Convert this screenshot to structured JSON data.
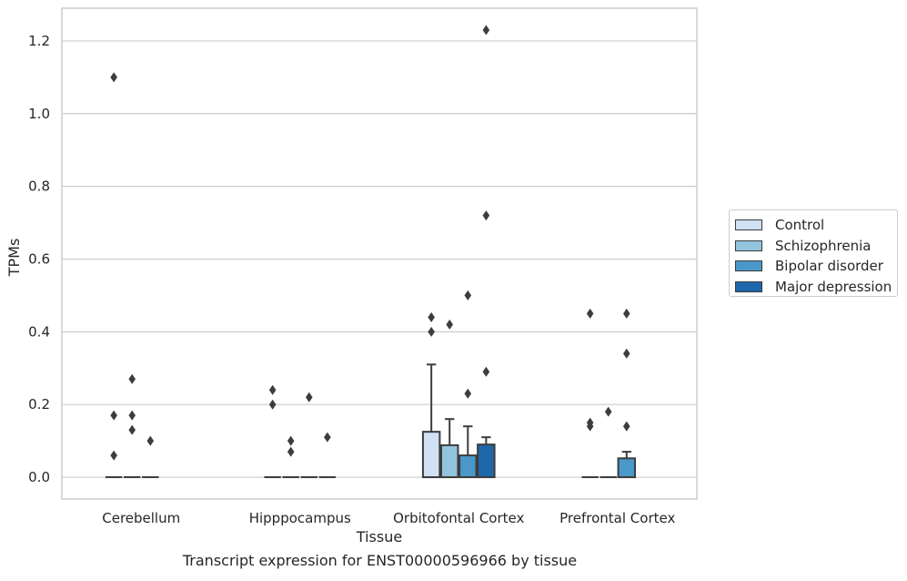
{
  "chart_data": {
    "type": "box",
    "xlabel": "Tissue",
    "ylabel": "TPMs",
    "ylim": [
      -0.06,
      1.29
    ],
    "yticks": [
      "0.0",
      "0.2",
      "0.4",
      "0.6",
      "0.8",
      "1.0",
      "1.2"
    ],
    "grid": "horizontal",
    "legend_position": "right",
    "categories": [
      "Cerebellum",
      "Hipppocampus",
      "Orbitofontal Cortex",
      "Prefrontal Cortex"
    ],
    "series": [
      {
        "name": "Control",
        "color": "#cfe1f2",
        "boxes": [
          {
            "q1": 0,
            "median": 0,
            "q3": 0,
            "whisker_low": 0,
            "whisker_high": 0,
            "outliers": [
              0.17,
              0.06,
              1.1
            ]
          },
          {
            "q1": 0,
            "median": 0,
            "q3": 0,
            "whisker_low": 0,
            "whisker_high": 0,
            "outliers": [
              0.24,
              0.2
            ]
          },
          {
            "q1": 0,
            "median": 0,
            "q3": 0.125,
            "whisker_low": 0,
            "whisker_high": 0.31,
            "outliers": [
              0.44,
              0.4
            ]
          },
          {
            "q1": 0,
            "median": 0,
            "q3": 0,
            "whisker_low": 0,
            "whisker_high": 0,
            "outliers": [
              0.45,
              0.15,
              0.14
            ]
          }
        ]
      },
      {
        "name": "Schizophrenia",
        "color": "#93c4de",
        "boxes": [
          {
            "q1": 0,
            "median": 0,
            "q3": 0,
            "whisker_low": 0,
            "whisker_high": 0,
            "outliers": [
              0.27,
              0.17,
              0.13
            ]
          },
          {
            "q1": 0,
            "median": 0,
            "q3": 0,
            "whisker_low": 0,
            "whisker_high": 0,
            "outliers": [
              0.1,
              0.07
            ]
          },
          {
            "q1": 0,
            "median": 0,
            "q3": 0.088,
            "whisker_low": 0,
            "whisker_high": 0.16,
            "outliers": [
              0.42
            ]
          },
          {
            "q1": 0,
            "median": 0,
            "q3": 0,
            "whisker_low": 0,
            "whisker_high": 0,
            "outliers": [
              0.18
            ]
          }
        ]
      },
      {
        "name": "Bipolar disorder",
        "color": "#4a98c9",
        "boxes": [
          {
            "q1": 0,
            "median": 0,
            "q3": 0,
            "whisker_low": 0,
            "whisker_high": 0,
            "outliers": [
              0.1
            ]
          },
          {
            "q1": 0,
            "median": 0,
            "q3": 0,
            "whisker_low": 0,
            "whisker_high": 0,
            "outliers": [
              0.22
            ]
          },
          {
            "q1": 0,
            "median": 0,
            "q3": 0.06,
            "whisker_low": 0,
            "whisker_high": 0.14,
            "outliers": [
              0.5,
              0.23
            ]
          },
          {
            "q1": 0,
            "median": 0,
            "q3": 0.052,
            "whisker_low": 0,
            "whisker_high": 0.07,
            "outliers": [
              0.45,
              0.34,
              0.14
            ]
          }
        ]
      },
      {
        "name": "Major depression",
        "color": "#1f67ab",
        "boxes": [
          null,
          {
            "q1": 0,
            "median": 0,
            "q3": 0,
            "whisker_low": 0,
            "whisker_high": 0,
            "outliers": [
              0.11
            ]
          },
          {
            "q1": 0,
            "median": 0,
            "q3": 0.09,
            "whisker_low": 0,
            "whisker_high": 0.11,
            "outliers": [
              1.23,
              0.72,
              0.29
            ]
          },
          null
        ]
      }
    ]
  },
  "caption": "Transcript expression for ENST00000596966 by tissue"
}
